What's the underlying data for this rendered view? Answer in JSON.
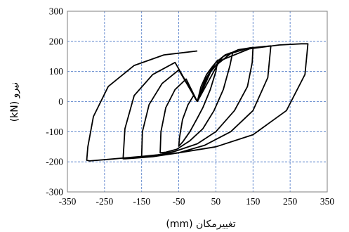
{
  "chart_data": {
    "type": "line",
    "xlabel": "تغییرمکان (mm)",
    "ylabel": "نیرو (kN)",
    "xlim": [
      -350,
      350
    ],
    "ylim": [
      -300,
      300
    ],
    "x_ticks": [
      "-350",
      "-250",
      "-150",
      "-50",
      "50",
      "150",
      "250",
      "350"
    ],
    "y_ticks": [
      "-300",
      "-200",
      "-100",
      "0",
      "100",
      "200",
      "300"
    ],
    "grid": true,
    "grid_style": "dashed",
    "colors": {
      "line": "#000000",
      "grid": "#4472c4",
      "frame": "#7f7f7f"
    },
    "series": [
      {
        "x": [
          0,
          10,
          25,
          40,
          50,
          55,
          50,
          35,
          15,
          0,
          -20,
          -40,
          -50,
          -48,
          -40,
          -25,
          -10,
          0
        ],
        "y": [
          0,
          50,
          90,
          115,
          130,
          138,
          100,
          40,
          -20,
          -55,
          -100,
          -135,
          -148,
          -120,
          -60,
          -10,
          20,
          0
        ]
      },
      {
        "x": [
          0,
          20,
          50,
          75,
          90,
          95,
          88,
          70,
          45,
          15,
          -20,
          -55,
          -85,
          -100,
          -98,
          -85,
          -60,
          -30,
          0
        ],
        "y": [
          0,
          70,
          130,
          155,
          162,
          162,
          120,
          40,
          -30,
          -90,
          -130,
          -158,
          -168,
          -170,
          -100,
          -20,
          40,
          75,
          0
        ]
      },
      {
        "x": [
          0,
          30,
          70,
          110,
          140,
          150,
          148,
          135,
          100,
          50,
          0,
          -60,
          -110,
          -140,
          -150,
          -148,
          -130,
          -95,
          -50,
          0
        ],
        "y": [
          0,
          90,
          150,
          172,
          178,
          180,
          130,
          50,
          -30,
          -100,
          -140,
          -165,
          -178,
          -182,
          -182,
          -100,
          -10,
          60,
          105,
          0
        ]
      },
      {
        "x": [
          0,
          40,
          90,
          140,
          180,
          198,
          198,
          190,
          150,
          90,
          20,
          -50,
          -120,
          -170,
          -195,
          -200,
          -195,
          -170,
          -120,
          -60,
          0
        ],
        "y": [
          0,
          110,
          160,
          178,
          183,
          185,
          185,
          80,
          -30,
          -100,
          -145,
          -170,
          -183,
          -188,
          -190,
          -190,
          -90,
          20,
          90,
          130,
          0
        ]
      },
      {
        "x": [
          0,
          60,
          140,
          220,
          280,
          298,
          298,
          290,
          240,
          150,
          50,
          -50,
          -150,
          -240,
          -290,
          -298,
          -295,
          -280,
          -240,
          -170,
          -90,
          0
        ],
        "y": [
          0,
          135,
          175,
          188,
          192,
          192,
          192,
          90,
          -30,
          -110,
          -150,
          -170,
          -182,
          -192,
          -197,
          -195,
          -150,
          -50,
          50,
          120,
          155,
          168
        ]
      }
    ]
  }
}
